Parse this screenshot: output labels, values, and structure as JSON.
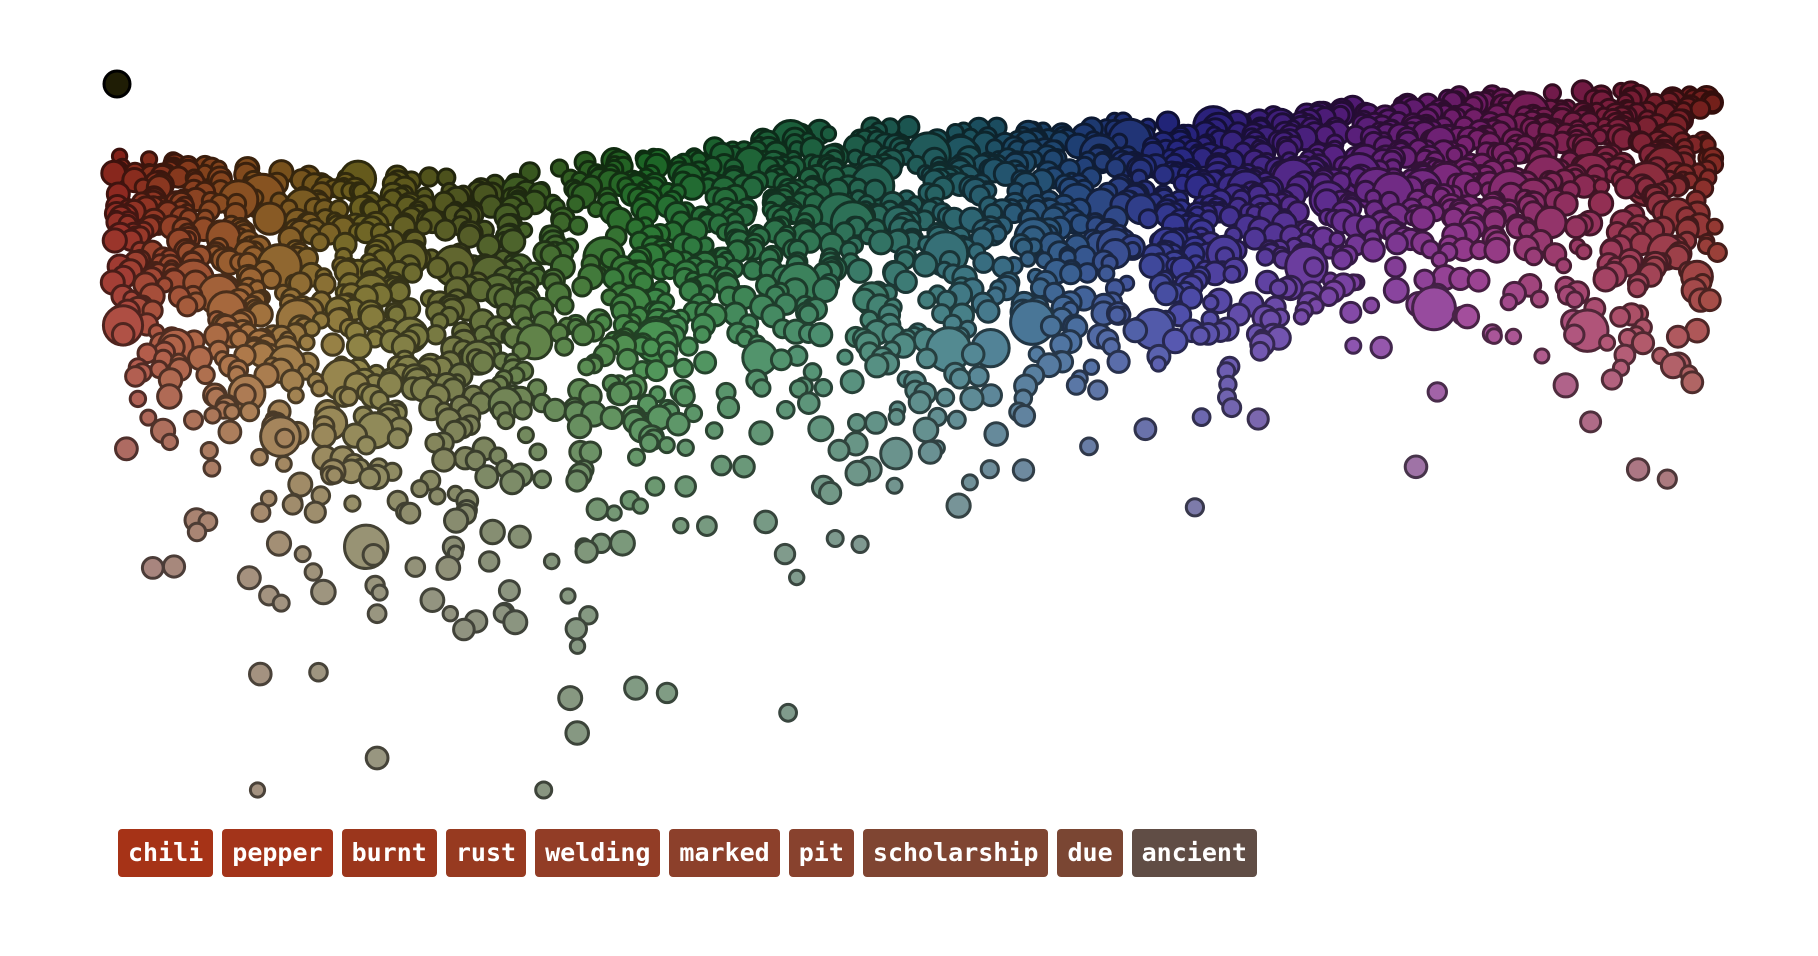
{
  "chart_data": {
    "type": "scatter",
    "title": "",
    "xlabel": "",
    "ylabel": "",
    "xlim": [
      0,
      360
    ],
    "ylim": [
      0,
      100
    ],
    "grid": false,
    "legend": "none",
    "x_meaning": "hue (degrees)",
    "y_meaning": "saturation/chroma",
    "point_count": 2600,
    "highlight_point": {
      "x": 0,
      "y": 100,
      "color": "#1f1d05"
    },
    "palette": [
      {
        "hue": 0,
        "color": "#c0281c"
      },
      {
        "hue": 30,
        "color": "#b5671f"
      },
      {
        "hue": 55,
        "color": "#8a7a1e"
      },
      {
        "hue": 80,
        "color": "#5e6a1e"
      },
      {
        "hue": 120,
        "color": "#1f8f2c"
      },
      {
        "hue": 160,
        "color": "#1f8a5a"
      },
      {
        "hue": 190,
        "color": "#1f7a8a"
      },
      {
        "hue": 215,
        "color": "#1f5aa8"
      },
      {
        "hue": 240,
        "color": "#2a2abf"
      },
      {
        "hue": 275,
        "color": "#7a1fbf"
      },
      {
        "hue": 305,
        "color": "#b51fa8"
      },
      {
        "hue": 335,
        "color": "#c81f5a"
      },
      {
        "hue": 360,
        "color": "#c0281c"
      }
    ]
  },
  "tags": [
    {
      "label": "chili",
      "color": "#a63317"
    },
    {
      "label": "pepper",
      "color": "#a3341a"
    },
    {
      "label": "burnt",
      "color": "#9b361c"
    },
    {
      "label": "rust",
      "color": "#973a20"
    },
    {
      "label": "welding",
      "color": "#923d26"
    },
    {
      "label": "marked",
      "color": "#8c402b"
    },
    {
      "label": "pit",
      "color": "#88422e"
    },
    {
      "label": "scholarship",
      "color": "#7f4532"
    },
    {
      "label": "due",
      "color": "#7a4633"
    },
    {
      "label": "ancient",
      "color": "#604d45"
    }
  ]
}
